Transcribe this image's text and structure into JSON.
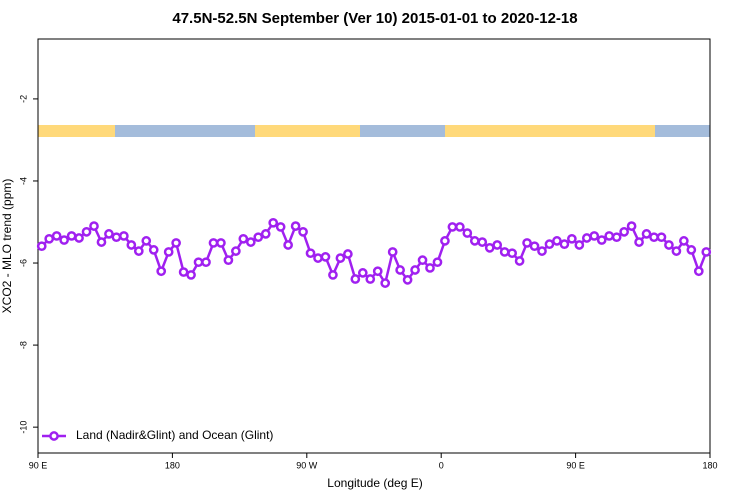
{
  "chart_data": {
    "type": "line",
    "title": "47.5N-52.5N September (Ver 10)   2015-01-01 to 2020-12-18",
    "x_label": "Longitude (deg E)",
    "y_label": "XCO2 - MLO trend (ppm)",
    "x": [
      92.5,
      97.5,
      102.5,
      107.5,
      112.5,
      117.5,
      122.5,
      127.5,
      132.5,
      137.5,
      142.5,
      147.5,
      152.5,
      157.5,
      162.5,
      167.5,
      172.5,
      177.5,
      182.5,
      187.5,
      192.5,
      197.5,
      202.5,
      207.5,
      212.5,
      217.5,
      222.5,
      227.5,
      232.5,
      237.5,
      242.5,
      247.5,
      252.5,
      257.5,
      262.5,
      267.5,
      272.5,
      277.5,
      282.5,
      287.5,
      292.5,
      297.5,
      302.5,
      307.5,
      312.5,
      317.5,
      322.5,
      327.5,
      332.5,
      337.5,
      342.5,
      347.5,
      352.5,
      357.5,
      362.5,
      367.5,
      372.5,
      377.5,
      382.5,
      387.5,
      392.5,
      397.5,
      402.5,
      407.5,
      412.5,
      417.5,
      422.5,
      427.5,
      432.5,
      437.5,
      442.5,
      447.5,
      452.5,
      457.5,
      462.5,
      467.5,
      472.5,
      477.5,
      482.5,
      487.5,
      492.5,
      497.5,
      502.5,
      507.5,
      512.5,
      517.5,
      522.5,
      527.5,
      532.5,
      537.5
    ],
    "series": [
      {
        "name": "Land (Nadir&Glint) and Ocean (Glint)",
        "color": "#a020f0",
        "values": [
          -5.59,
          -5.41,
          -5.34,
          -5.44,
          -5.34,
          -5.39,
          -5.24,
          -5.1,
          -5.49,
          -5.29,
          -5.37,
          -5.34,
          -5.56,
          -5.71,
          -5.46,
          -5.68,
          -6.2,
          -5.73,
          -5.51,
          -6.22,
          -6.29,
          -5.98,
          -5.98,
          -5.51,
          -5.51,
          -5.93,
          -5.71,
          -5.41,
          -5.49,
          -5.37,
          -5.29,
          -5.02,
          -5.12,
          -5.56,
          -5.1,
          -5.24,
          -5.76,
          -5.88,
          -5.85,
          -6.29,
          -5.88,
          -5.78,
          -6.39,
          -6.24,
          -6.39,
          -6.2,
          -6.49,
          -5.73,
          -6.17,
          -6.41,
          -6.17,
          -5.93,
          -6.12,
          -5.98,
          -5.46,
          -5.12,
          -5.12,
          -5.27,
          -5.46,
          -5.49,
          -5.63,
          -5.56,
          -5.73,
          -5.76,
          -5.95,
          -5.51,
          -5.59,
          -5.71,
          -5.54,
          -5.46,
          -5.54,
          -5.41,
          -5.56,
          -5.39,
          -5.34,
          -5.44,
          -5.34,
          -5.37,
          -5.24,
          -5.1,
          -5.49,
          -5.29,
          -5.37,
          -5.37,
          -5.56,
          -5.71,
          -5.46,
          -5.68,
          -6.2,
          -5.73
        ]
      }
    ],
    "xlim": [
      90,
      540
    ],
    "xticks": [
      {
        "value": 90,
        "label": "90 E"
      },
      180,
      {
        "value": 270,
        "label": "90 W"
      },
      {
        "value": 360,
        "label": "0"
      },
      {
        "value": 450,
        "label": "90 E"
      },
      {
        "value": 540,
        "label": "180"
      }
    ],
    "ylim": [
      -10.63,
      -0.54
    ],
    "yticks": [
      -2,
      -4,
      -6,
      -8,
      -10
    ],
    "legend": "bottomleft"
  }
}
